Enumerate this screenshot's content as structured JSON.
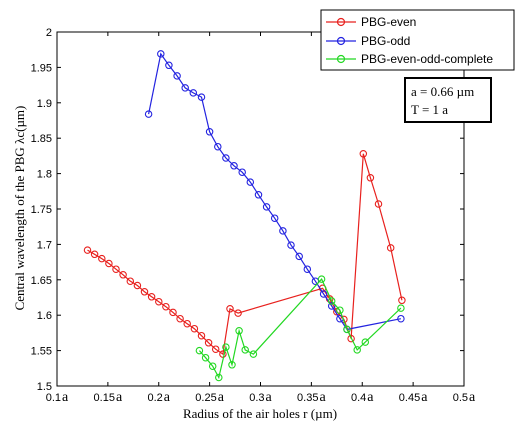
{
  "chart_data": {
    "type": "line",
    "xlabel": "Radius of the air holes r (µm)",
    "ylabel": "Central wavelength of the PBG λc(µm)",
    "xlim": [
      0.1,
      0.5
    ],
    "ylim": [
      1.5,
      2.0
    ],
    "grid": false,
    "legend_placement": "top-right",
    "x_ticks": [
      {
        "num": "0.1",
        "unit": "a"
      },
      {
        "num": "0.15",
        "unit": "a"
      },
      {
        "num": "0.2",
        "unit": "a"
      },
      {
        "num": "0.25",
        "unit": "a"
      },
      {
        "num": "0.3",
        "unit": "a"
      },
      {
        "num": "0.35",
        "unit": "a"
      },
      {
        "num": "0.4",
        "unit": "a"
      },
      {
        "num": "0.45",
        "unit": "a"
      },
      {
        "num": "0.5",
        "unit": "a"
      }
    ],
    "y_ticks": [
      "1.5",
      "1.55",
      "1.6",
      "1.65",
      "1.7",
      "1.75",
      "1.8",
      "1.85",
      "1.9",
      "1.95",
      "2"
    ],
    "annotation": [
      "a = 0.66 µm",
      "T = 1 a"
    ],
    "series": [
      {
        "name": "PBG-even",
        "color": "#e8211e",
        "points": [
          [
            0.13,
            1.692
          ],
          [
            0.137,
            1.686
          ],
          [
            0.144,
            1.68
          ],
          [
            0.151,
            1.673
          ],
          [
            0.158,
            1.665
          ],
          [
            0.165,
            1.657
          ],
          [
            0.172,
            1.648
          ],
          [
            0.179,
            1.642
          ],
          [
            0.186,
            1.633
          ],
          [
            0.193,
            1.626
          ],
          [
            0.2,
            1.619
          ],
          [
            0.207,
            1.612
          ],
          [
            0.214,
            1.604
          ],
          [
            0.221,
            1.595
          ],
          [
            0.228,
            1.588
          ],
          [
            0.235,
            1.581
          ],
          [
            0.242,
            1.571
          ],
          [
            0.249,
            1.561
          ],
          [
            0.256,
            1.552
          ],
          [
            0.263,
            1.545
          ],
          [
            0.27,
            1.609
          ],
          [
            0.278,
            1.603
          ],
          [
            0.361,
            1.638
          ],
          [
            0.368,
            1.623
          ],
          [
            0.375,
            1.605
          ],
          [
            0.382,
            1.594
          ],
          [
            0.389,
            1.567
          ],
          [
            0.401,
            1.828
          ],
          [
            0.408,
            1.794
          ],
          [
            0.416,
            1.757
          ],
          [
            0.428,
            1.695
          ],
          [
            0.439,
            1.621
          ]
        ]
      },
      {
        "name": "PBG-odd",
        "color": "#2323e0",
        "points": [
          [
            0.19,
            1.884
          ],
          [
            0.202,
            1.969
          ],
          [
            0.21,
            1.953
          ],
          [
            0.218,
            1.938
          ],
          [
            0.226,
            1.921
          ],
          [
            0.234,
            1.914
          ],
          [
            0.242,
            1.908
          ],
          [
            0.25,
            1.859
          ],
          [
            0.258,
            1.838
          ],
          [
            0.266,
            1.822
          ],
          [
            0.274,
            1.811
          ],
          [
            0.282,
            1.802
          ],
          [
            0.29,
            1.788
          ],
          [
            0.298,
            1.77
          ],
          [
            0.306,
            1.753
          ],
          [
            0.314,
            1.737
          ],
          [
            0.322,
            1.719
          ],
          [
            0.33,
            1.699
          ],
          [
            0.338,
            1.683
          ],
          [
            0.346,
            1.665
          ],
          [
            0.354,
            1.648
          ],
          [
            0.362,
            1.63
          ],
          [
            0.37,
            1.613
          ],
          [
            0.378,
            1.595
          ],
          [
            0.385,
            1.58
          ],
          [
            0.438,
            1.595
          ]
        ]
      },
      {
        "name": "PBG-even-odd-complete",
        "color": "#22d822",
        "points": [
          [
            0.24,
            1.55
          ],
          [
            0.246,
            1.54
          ],
          [
            0.253,
            1.528
          ],
          [
            0.259,
            1.512
          ],
          [
            0.266,
            1.555
          ],
          [
            0.272,
            1.53
          ],
          [
            0.279,
            1.578
          ],
          [
            0.285,
            1.551
          ],
          [
            0.293,
            1.545
          ],
          [
            0.36,
            1.651
          ],
          [
            0.37,
            1.62
          ],
          [
            0.378,
            1.607
          ],
          [
            0.385,
            1.58
          ],
          [
            0.395,
            1.551
          ],
          [
            0.403,
            1.562
          ],
          [
            0.438,
            1.61
          ]
        ]
      }
    ]
  }
}
